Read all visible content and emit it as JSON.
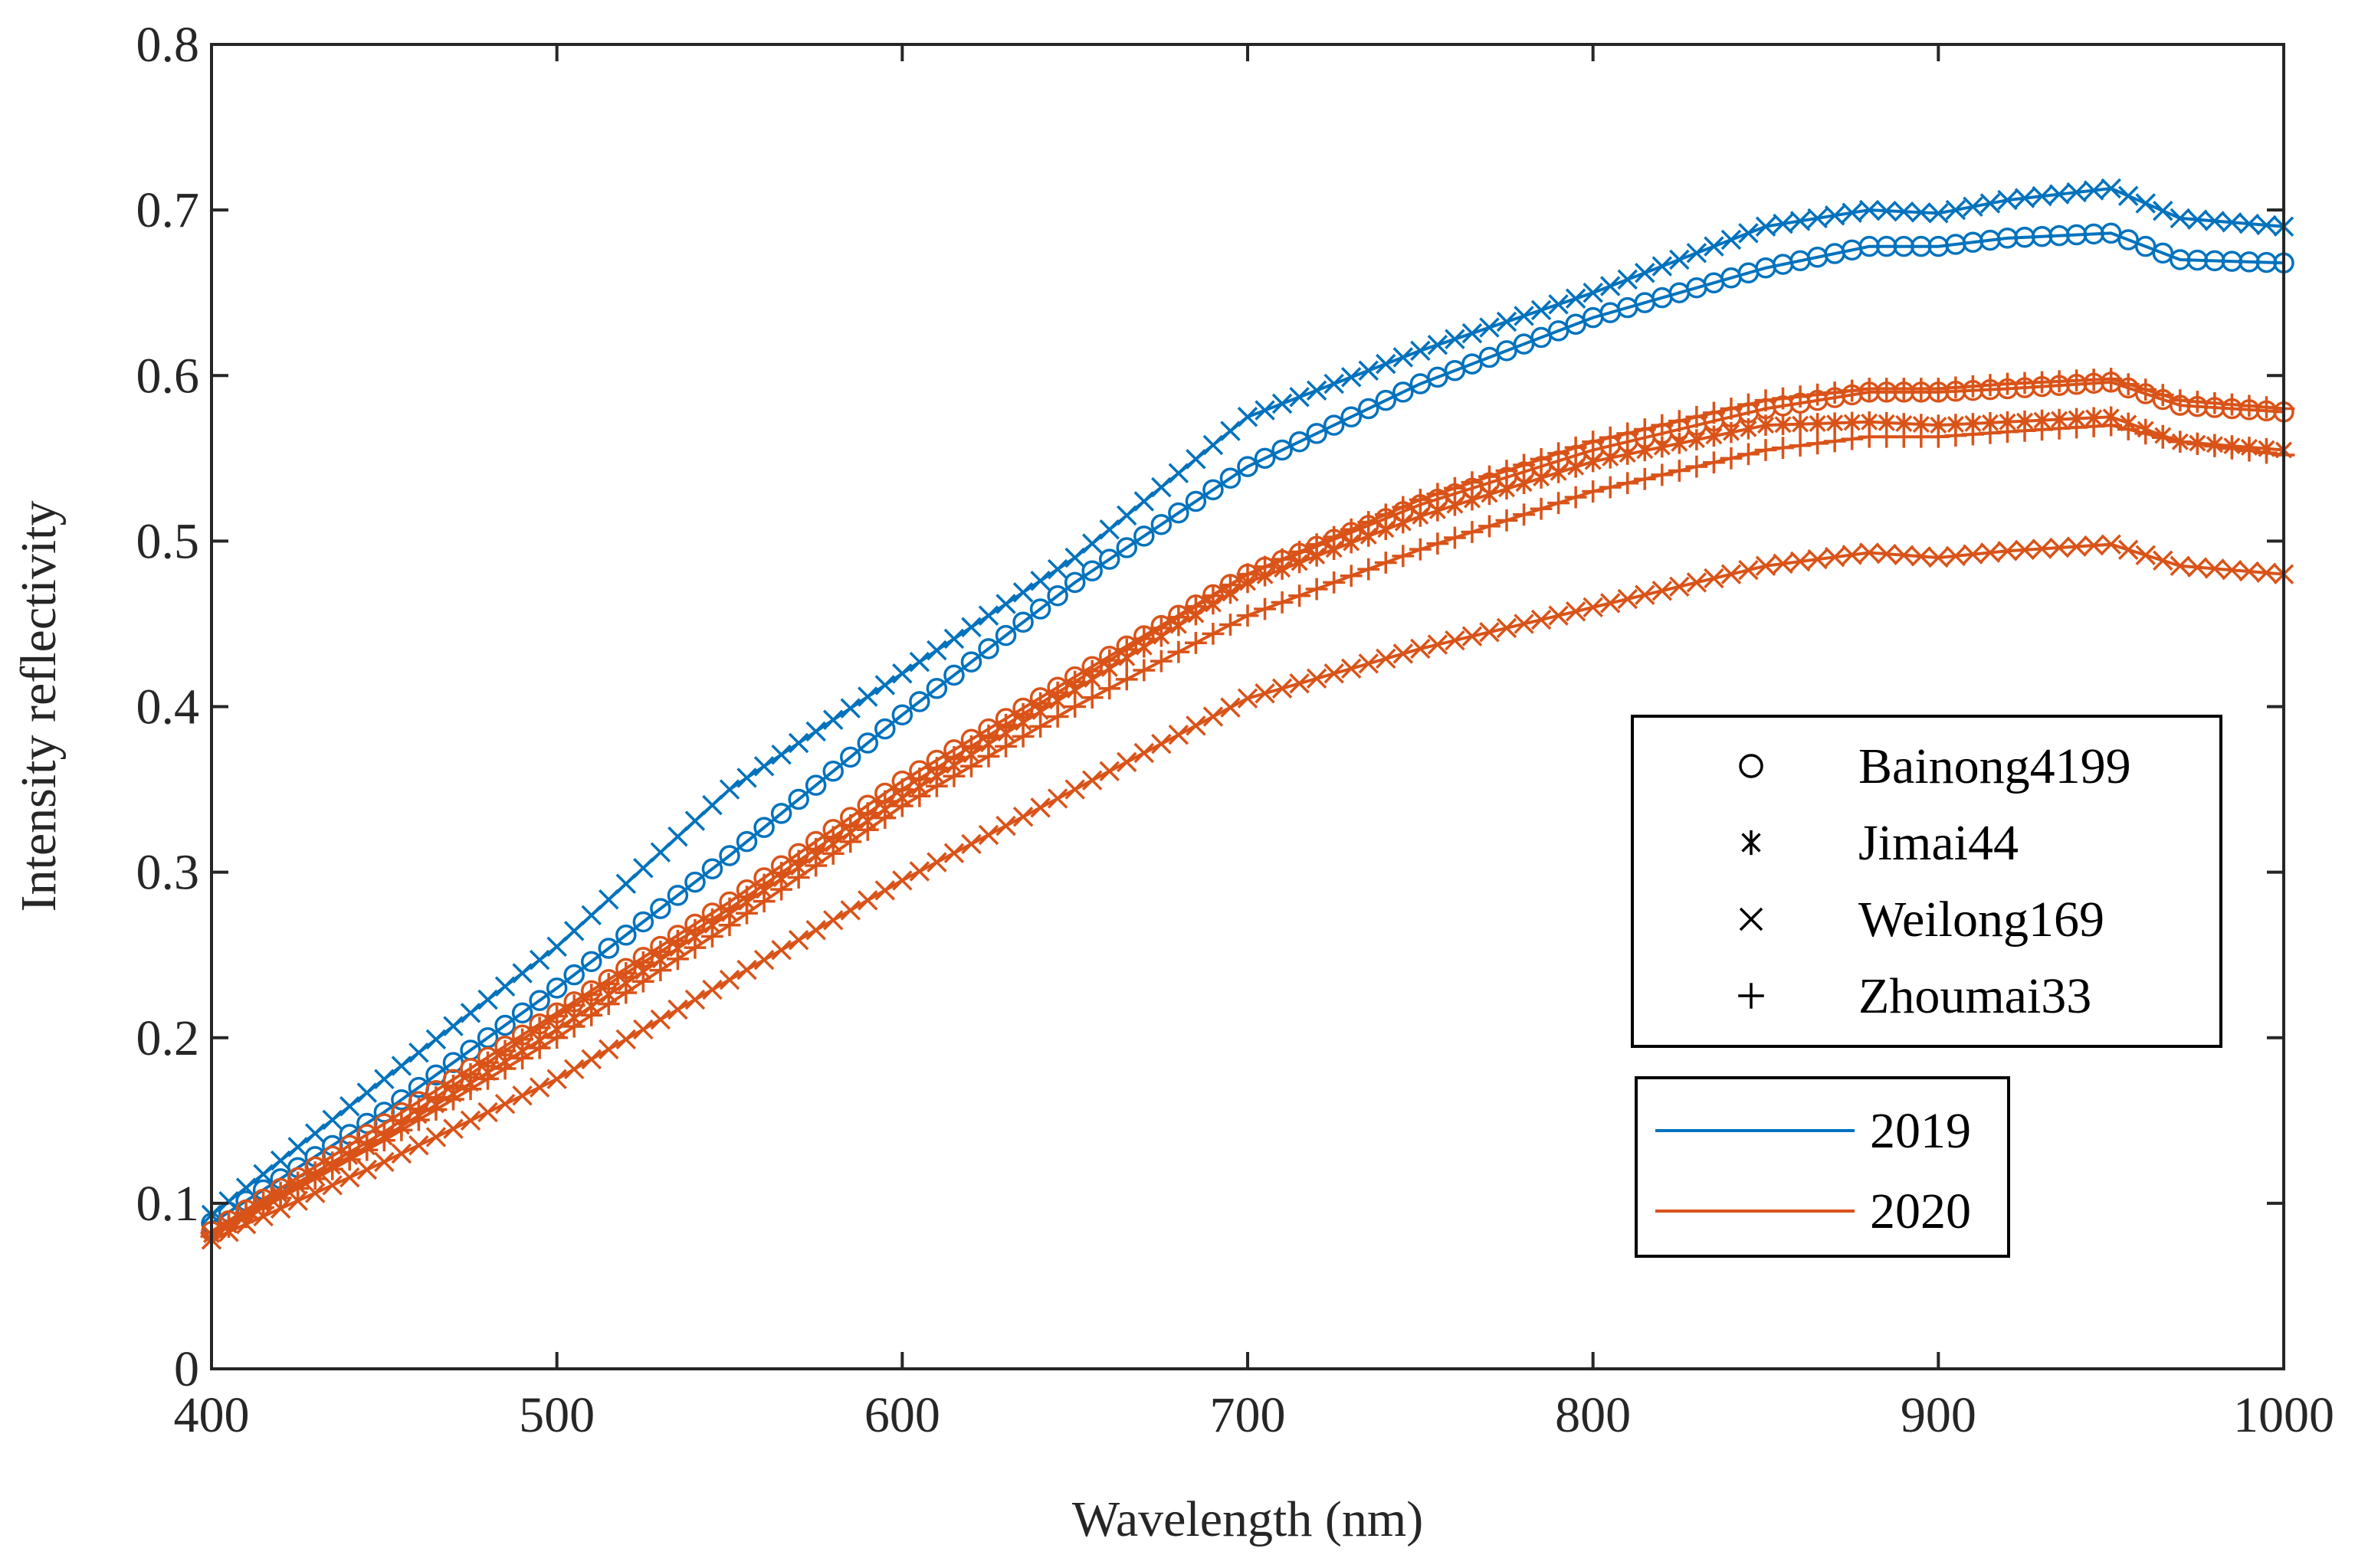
{
  "chart_data": {
    "type": "line",
    "xlabel": "Wavelength (nm)",
    "ylabel": "Intensity reflectivity",
    "xlim": [
      400,
      1000
    ],
    "ylim": [
      0,
      0.8
    ],
    "xticks": [
      400,
      500,
      600,
      700,
      800,
      900,
      1000
    ],
    "xtick_labels": [
      "400",
      "500",
      "600",
      "700",
      "800",
      "900",
      "1000"
    ],
    "yticks": [
      0,
      0.1,
      0.2,
      0.3,
      0.4,
      0.5,
      0.6,
      0.7,
      0.8
    ],
    "ytick_labels": [
      "0",
      "0.1",
      "0.2",
      "0.3",
      "0.4",
      "0.5",
      "0.6",
      "0.7",
      "0.8"
    ],
    "grid": false,
    "colors": {
      "2019": "#0072BD",
      "2020": "#D95319",
      "axis": "#262626"
    },
    "variety_legend": {
      "position": "right",
      "entries": [
        {
          "label": "Bainong4199",
          "marker": "circle"
        },
        {
          "label": "Jimai44",
          "marker": "asterisk"
        },
        {
          "label": "Weilong169",
          "marker": "x"
        },
        {
          "label": "Zhoumai33",
          "marker": "plus"
        }
      ]
    },
    "year_legend": {
      "position": "lower-right",
      "entries": [
        {
          "label": "2019",
          "color": "#0072BD"
        },
        {
          "label": "2020",
          "color": "#D95319"
        }
      ]
    },
    "marker_step_nm": 5,
    "series": [
      {
        "name": "Weilong169 2019",
        "year": "2019",
        "marker": "x",
        "x": [
          400,
          450,
          500,
          550,
          600,
          650,
          700,
          750,
          800,
          850,
          880,
          900,
          920,
          950,
          970,
          1000
        ],
        "y": [
          0.093,
          0.175,
          0.255,
          0.35,
          0.42,
          0.49,
          0.575,
          0.615,
          0.65,
          0.69,
          0.7,
          0.698,
          0.706,
          0.713,
          0.695,
          0.69
        ]
      },
      {
        "name": "Bainong4199 2019",
        "year": "2019",
        "marker": "circle",
        "x": [
          400,
          450,
          500,
          550,
          600,
          650,
          700,
          750,
          800,
          850,
          880,
          900,
          920,
          950,
          970,
          1000
        ],
        "y": [
          0.088,
          0.155,
          0.23,
          0.31,
          0.395,
          0.475,
          0.545,
          0.595,
          0.635,
          0.665,
          0.678,
          0.678,
          0.683,
          0.686,
          0.67,
          0.668
        ]
      },
      {
        "name": "Bainong4199 2020",
        "year": "2020",
        "marker": "circle",
        "x": [
          400,
          450,
          500,
          550,
          600,
          650,
          700,
          750,
          800,
          850,
          880,
          900,
          920,
          950,
          970,
          1000
        ],
        "y": [
          0.083,
          0.148,
          0.215,
          0.282,
          0.355,
          0.418,
          0.48,
          0.522,
          0.555,
          0.58,
          0.59,
          0.59,
          0.592,
          0.596,
          0.582,
          0.578
        ]
      },
      {
        "name": "Zhoumai33 2020",
        "year": "2020",
        "marker": "plus",
        "x": [
          400,
          450,
          500,
          550,
          600,
          650,
          700,
          750,
          800,
          850,
          880,
          900,
          920,
          950,
          970,
          1000
        ],
        "y": [
          0.082,
          0.143,
          0.213,
          0.278,
          0.35,
          0.415,
          0.48,
          0.525,
          0.56,
          0.585,
          0.592,
          0.592,
          0.595,
          0.598,
          0.585,
          0.58
        ]
      },
      {
        "name": "Jimai44 2020",
        "year": "2020",
        "marker": "asterisk",
        "x": [
          400,
          450,
          500,
          550,
          600,
          650,
          700,
          750,
          800,
          850,
          880,
          900,
          920,
          950,
          970,
          1000
        ],
        "y": [
          0.081,
          0.14,
          0.205,
          0.275,
          0.345,
          0.41,
          0.475,
          0.515,
          0.548,
          0.57,
          0.572,
          0.57,
          0.572,
          0.575,
          0.56,
          0.555
        ]
      },
      {
        "name": "Zhoumai33 2020 (lower)",
        "year": "2020",
        "marker": "plus",
        "x": [
          400,
          450,
          500,
          550,
          600,
          650,
          700,
          750,
          800,
          850,
          880,
          900,
          920,
          950,
          970,
          1000
        ],
        "y": [
          0.08,
          0.138,
          0.2,
          0.268,
          0.34,
          0.4,
          0.455,
          0.495,
          0.53,
          0.555,
          0.563,
          0.563,
          0.566,
          0.57,
          0.56,
          0.552
        ]
      },
      {
        "name": "Weilong169 2020",
        "year": "2020",
        "marker": "x",
        "x": [
          400,
          450,
          500,
          550,
          600,
          650,
          700,
          750,
          800,
          850,
          880,
          900,
          920,
          950,
          970,
          1000
        ],
        "y": [
          0.078,
          0.125,
          0.175,
          0.235,
          0.295,
          0.35,
          0.405,
          0.435,
          0.46,
          0.485,
          0.493,
          0.49,
          0.494,
          0.498,
          0.485,
          0.48
        ]
      }
    ]
  }
}
